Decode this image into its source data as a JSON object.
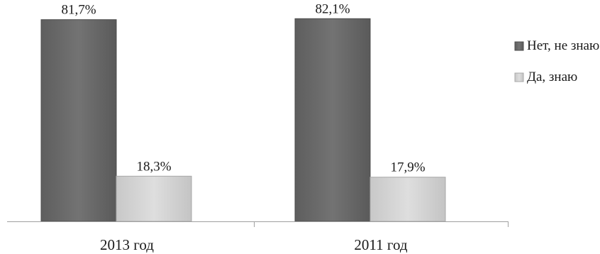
{
  "chart_data": {
    "type": "bar",
    "categories": [
      "2013 год",
      "2011 год"
    ],
    "series": [
      {
        "name": "Нет, не знаю",
        "values": [
          81.7,
          82.1
        ],
        "labels": [
          "81,7%",
          "82,1%"
        ],
        "color": "#6b6b6b"
      },
      {
        "name": "Да, знаю",
        "values": [
          18.3,
          17.9
        ],
        "labels": [
          "18,3%",
          "17,9%"
        ],
        "color": "#d3d3d3"
      }
    ],
    "ylim": [
      0,
      100
    ],
    "grid": false,
    "legend_position": "right",
    "title": "",
    "xlabel": "",
    "ylabel": ""
  }
}
